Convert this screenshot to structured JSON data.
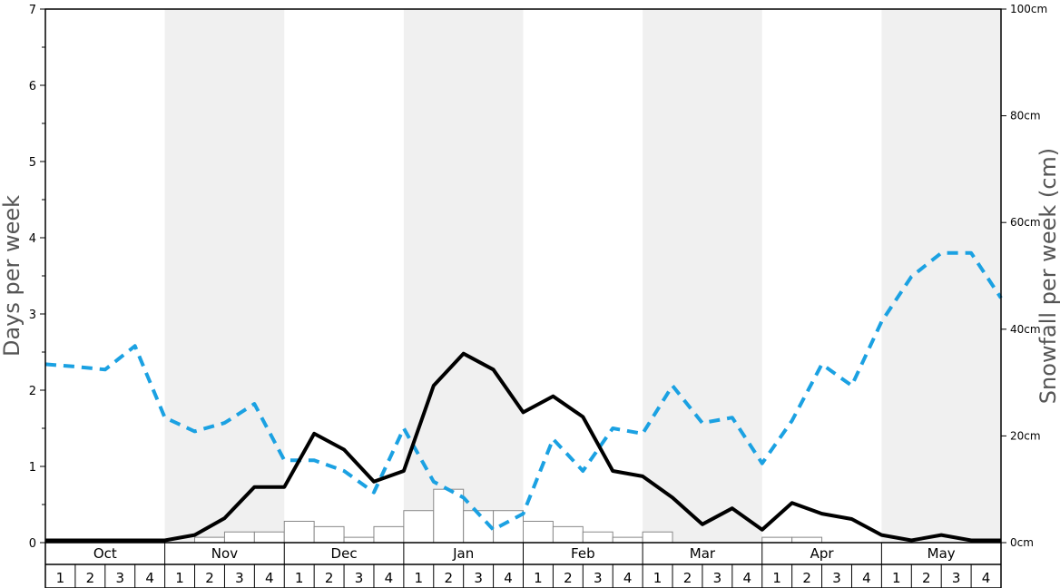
{
  "chart_data": {
    "type": "line",
    "ylabel_left": "Days per week",
    "ylabel_right": "Snowfall per week (cm)",
    "ylim_left": [
      0,
      7
    ],
    "ylim_right": [
      0,
      100
    ],
    "y_ticks_left": [
      "0",
      "1",
      "2",
      "3",
      "4",
      "5",
      "6",
      "7"
    ],
    "y_ticks_right": [
      "0cm",
      "20cm",
      "40cm",
      "60cm",
      "80cm",
      "100cm"
    ],
    "months": [
      "Oct",
      "Nov",
      "Dec",
      "Jan",
      "Feb",
      "Mar",
      "Apr",
      "May"
    ],
    "weeks": [
      "1",
      "2",
      "3",
      "4"
    ],
    "grid": false,
    "colors": {
      "days_line": "#000000",
      "dashed_line": "#1ba1e2",
      "bars_fill": "#ffffff",
      "bars_stroke": "#888888",
      "band_shade": "#f0f0f0"
    },
    "series": [
      {
        "type": "line",
        "style": "solid",
        "axis": "left",
        "values": [
          0.03,
          0.03,
          0.03,
          0.03,
          0.03,
          0.1,
          0.32,
          0.73,
          0.73,
          1.43,
          1.22,
          0.8,
          0.94,
          2.06,
          2.48,
          2.27,
          1.71,
          1.92,
          1.65,
          0.94,
          0.87,
          0.59,
          0.24,
          0.45,
          0.17,
          0.52,
          0.38,
          0.31,
          0.1,
          0.03,
          0.1,
          0.03,
          0.03
        ]
      },
      {
        "type": "line",
        "style": "dashed",
        "axis": "left",
        "values": [
          2.34,
          2.31,
          2.27,
          2.58,
          1.64,
          1.46,
          1.57,
          1.82,
          1.08,
          1.08,
          0.94,
          0.66,
          1.5,
          0.8,
          0.59,
          0.17,
          0.38,
          1.36,
          0.94,
          1.5,
          1.43,
          2.06,
          1.57,
          1.64,
          1.04,
          1.6,
          2.34,
          2.06,
          2.9,
          3.49,
          3.8,
          3.8,
          3.21
        ]
      },
      {
        "type": "bar",
        "axis": "right",
        "values": [
          0,
          0,
          0,
          0,
          0,
          1,
          2,
          2,
          4,
          3,
          1,
          3,
          6,
          10,
          6,
          6,
          4,
          3,
          2,
          1,
          2,
          0,
          0,
          0,
          1,
          1,
          0,
          0,
          0,
          0,
          0,
          0
        ]
      }
    ]
  }
}
